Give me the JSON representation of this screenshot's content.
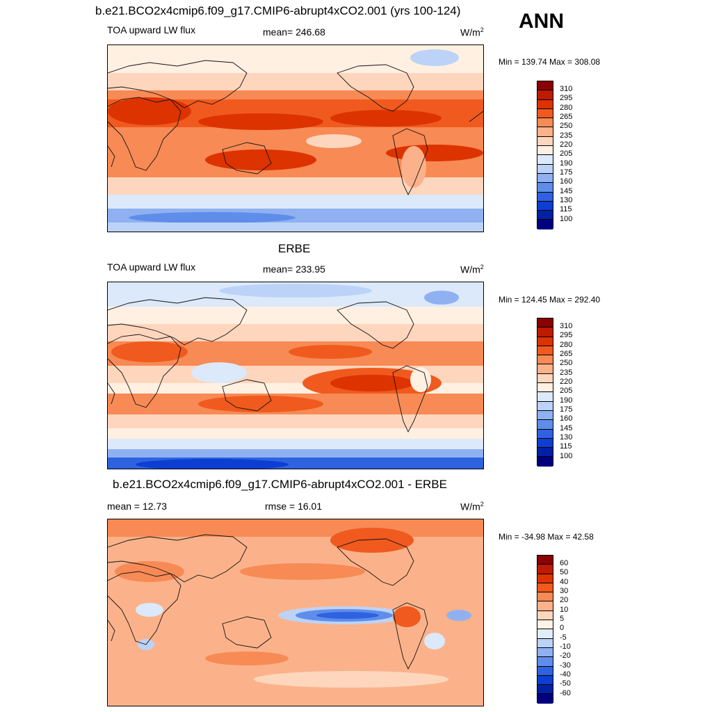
{
  "header": {
    "title_model": "b.e21.BCO2x4cmip6.f09_g17.CMIP6-abrupt4xCO2.001 (yrs 100-124)",
    "season": "ANN"
  },
  "panels": [
    {
      "id": "model",
      "title": "",
      "left_label": "TOA upward LW flux",
      "center_label": "mean= 246.68",
      "units": "W/m",
      "units_sup": "2",
      "minmax": "Min = 139.74 Max = 308.08",
      "colorbar_labels": [
        "310",
        "295",
        "280",
        "265",
        "250",
        "235",
        "220",
        "205",
        "190",
        "175",
        "160",
        "145",
        "130",
        "115",
        "100"
      ]
    },
    {
      "id": "obs",
      "title": "ERBE",
      "left_label": "TOA upward LW flux",
      "center_label": "mean= 233.95",
      "units": "W/m",
      "units_sup": "2",
      "minmax": "Min = 124.45 Max = 292.40",
      "colorbar_labels": [
        "310",
        "295",
        "280",
        "265",
        "250",
        "235",
        "220",
        "205",
        "190",
        "175",
        "160",
        "145",
        "130",
        "115",
        "100"
      ]
    },
    {
      "id": "diff",
      "title": "b.e21.BCO2x4cmip6.f09_g17.CMIP6-abrupt4xCO2.001 - ERBE",
      "left_label": "mean =  12.73",
      "center_label": "rmse =  16.01",
      "units": "W/m",
      "units_sup": "2",
      "minmax": "Min = -34.98 Max =  42.58",
      "colorbar_labels": [
        "60",
        "50",
        "40",
        "30",
        "20",
        "10",
        "5",
        "0",
        "-5",
        "-10",
        "-20",
        "-30",
        "-40",
        "-50",
        "-60"
      ]
    }
  ],
  "colors": {
    "abs_scale": [
      "#8b0000",
      "#bd1a00",
      "#dd3300",
      "#f05a1e",
      "#f78a55",
      "#fbb28a",
      "#fdd6bd",
      "#fff0e2",
      "#dbe9fb",
      "#bcd3f7",
      "#8fb1f1",
      "#5f8de9",
      "#2f62e0",
      "#0b3ed1",
      "#0020a6",
      "#00007f"
    ],
    "diff_scale": [
      "#8b0000",
      "#bd1a00",
      "#dd3300",
      "#f05a1e",
      "#f78a55",
      "#fbb28a",
      "#fdd6bd",
      "#fff2e6",
      "#e2edfb",
      "#bcd3f7",
      "#8fb1f1",
      "#5f8de9",
      "#2f62e0",
      "#0b3ed1",
      "#0020a6",
      "#00007f"
    ]
  }
}
